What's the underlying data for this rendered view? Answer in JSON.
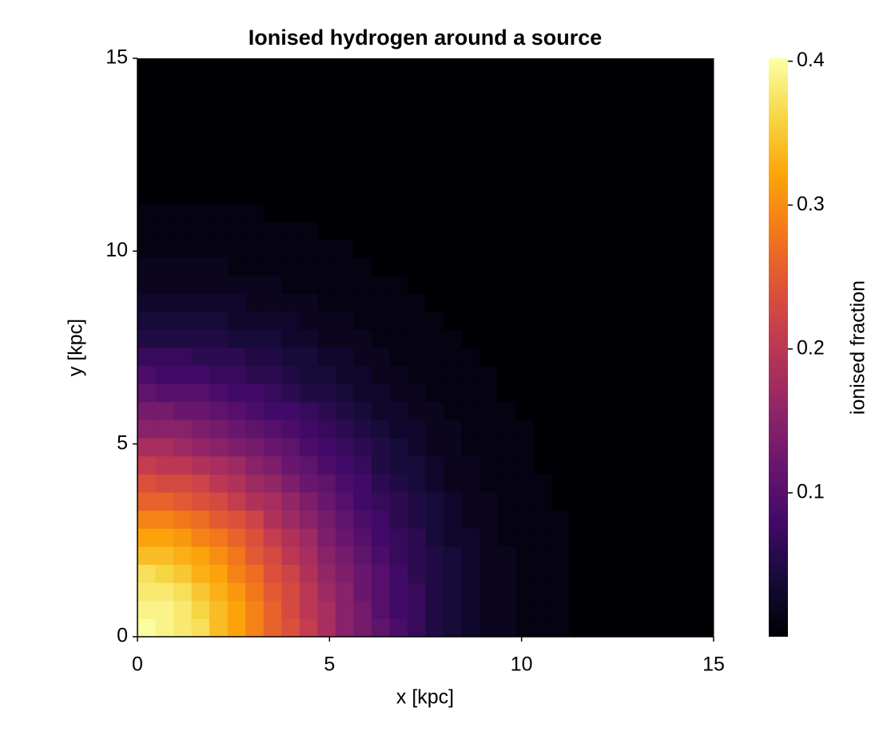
{
  "chart_data": {
    "type": "heatmap",
    "title": "Ionised hydrogen around a source",
    "xlabel": "x [kpc]",
    "ylabel": "y [kpc]",
    "colorbar_label": "ionised fraction",
    "xlim": [
      0,
      15
    ],
    "ylim": [
      0,
      15
    ],
    "xticks": [
      0,
      5,
      10,
      15
    ],
    "yticks": [
      0,
      5,
      10,
      15
    ],
    "colormap": "inferno",
    "clim": [
      0,
      0.402
    ],
    "cticks": [
      0.1,
      0.2,
      0.3,
      0.4
    ],
    "z": [
      [
        0.4,
        0.39,
        0.38,
        0.37,
        0.34,
        0.32,
        0.29,
        0.26,
        0.24,
        0.21,
        0.18,
        0.15,
        0.13,
        0.11,
        0.09,
        0.07,
        0.05,
        0.04,
        0.03,
        0.02,
        0.02,
        0.01,
        0.01,
        0.01,
        0,
        0,
        0,
        0,
        0,
        0,
        0,
        0
      ],
      [
        0.39,
        0.39,
        0.38,
        0.36,
        0.34,
        0.32,
        0.29,
        0.26,
        0.23,
        0.2,
        0.18,
        0.15,
        0.13,
        0.1,
        0.08,
        0.07,
        0.05,
        0.04,
        0.03,
        0.02,
        0.02,
        0.01,
        0.01,
        0.01,
        0,
        0,
        0,
        0,
        0,
        0,
        0,
        0
      ],
      [
        0.38,
        0.38,
        0.37,
        0.35,
        0.33,
        0.31,
        0.28,
        0.25,
        0.23,
        0.2,
        0.17,
        0.15,
        0.12,
        0.1,
        0.08,
        0.07,
        0.05,
        0.04,
        0.03,
        0.02,
        0.02,
        0.01,
        0.01,
        0.01,
        0,
        0,
        0,
        0,
        0,
        0,
        0,
        0
      ],
      [
        0.37,
        0.36,
        0.35,
        0.33,
        0.32,
        0.29,
        0.27,
        0.24,
        0.22,
        0.19,
        0.16,
        0.14,
        0.12,
        0.1,
        0.08,
        0.06,
        0.05,
        0.04,
        0.03,
        0.02,
        0.02,
        0.01,
        0.01,
        0.01,
        0,
        0,
        0,
        0,
        0,
        0,
        0,
        0
      ],
      [
        0.34,
        0.34,
        0.33,
        0.32,
        0.3,
        0.28,
        0.25,
        0.23,
        0.2,
        0.18,
        0.15,
        0.13,
        0.11,
        0.09,
        0.07,
        0.06,
        0.05,
        0.04,
        0.03,
        0.02,
        0.02,
        0.01,
        0.01,
        0.01,
        0,
        0,
        0,
        0,
        0,
        0,
        0,
        0
      ],
      [
        0.32,
        0.32,
        0.31,
        0.29,
        0.28,
        0.26,
        0.24,
        0.21,
        0.19,
        0.17,
        0.14,
        0.12,
        0.1,
        0.08,
        0.07,
        0.06,
        0.04,
        0.03,
        0.03,
        0.02,
        0.01,
        0.01,
        0.01,
        0.01,
        0,
        0,
        0,
        0,
        0,
        0,
        0,
        0
      ],
      [
        0.29,
        0.29,
        0.28,
        0.27,
        0.25,
        0.24,
        0.22,
        0.19,
        0.17,
        0.15,
        0.13,
        0.11,
        0.09,
        0.08,
        0.06,
        0.05,
        0.04,
        0.03,
        0.02,
        0.02,
        0.01,
        0.01,
        0.01,
        0.01,
        0,
        0,
        0,
        0,
        0,
        0,
        0,
        0
      ],
      [
        0.26,
        0.26,
        0.25,
        0.24,
        0.23,
        0.21,
        0.19,
        0.18,
        0.16,
        0.14,
        0.12,
        0.1,
        0.08,
        0.07,
        0.06,
        0.05,
        0.04,
        0.03,
        0.02,
        0.02,
        0.01,
        0.01,
        0.01,
        0,
        0,
        0,
        0,
        0,
        0,
        0,
        0,
        0
      ],
      [
        0.24,
        0.23,
        0.23,
        0.22,
        0.2,
        0.19,
        0.17,
        0.16,
        0.14,
        0.12,
        0.11,
        0.09,
        0.08,
        0.06,
        0.05,
        0.04,
        0.03,
        0.02,
        0.02,
        0.01,
        0.01,
        0.01,
        0.01,
        0,
        0,
        0,
        0,
        0,
        0,
        0,
        0,
        0
      ],
      [
        0.21,
        0.2,
        0.2,
        0.19,
        0.18,
        0.17,
        0.15,
        0.14,
        0.12,
        0.11,
        0.09,
        0.08,
        0.07,
        0.05,
        0.04,
        0.04,
        0.03,
        0.02,
        0.02,
        0.01,
        0.01,
        0.01,
        0,
        0,
        0,
        0,
        0,
        0,
        0,
        0,
        0,
        0
      ],
      [
        0.18,
        0.18,
        0.17,
        0.16,
        0.15,
        0.14,
        0.13,
        0.12,
        0.11,
        0.09,
        0.08,
        0.07,
        0.06,
        0.05,
        0.04,
        0.03,
        0.02,
        0.02,
        0.01,
        0.01,
        0.01,
        0.01,
        0,
        0,
        0,
        0,
        0,
        0,
        0,
        0,
        0,
        0
      ],
      [
        0.15,
        0.15,
        0.15,
        0.14,
        0.13,
        0.12,
        0.11,
        0.1,
        0.09,
        0.08,
        0.07,
        0.06,
        0.05,
        0.04,
        0.03,
        0.03,
        0.02,
        0.02,
        0.01,
        0.01,
        0.01,
        0.01,
        0,
        0,
        0,
        0,
        0,
        0,
        0,
        0,
        0,
        0
      ],
      [
        0.13,
        0.13,
        0.12,
        0.12,
        0.11,
        0.1,
        0.09,
        0.08,
        0.08,
        0.07,
        0.06,
        0.05,
        0.04,
        0.03,
        0.03,
        0.02,
        0.02,
        0.01,
        0.01,
        0.01,
        0.01,
        0,
        0,
        0,
        0,
        0,
        0,
        0,
        0,
        0,
        0,
        0
      ],
      [
        0.11,
        0.1,
        0.1,
        0.1,
        0.09,
        0.08,
        0.08,
        0.07,
        0.06,
        0.05,
        0.05,
        0.04,
        0.03,
        0.03,
        0.02,
        0.02,
        0.01,
        0.01,
        0.01,
        0.01,
        0,
        0,
        0,
        0,
        0,
        0,
        0,
        0,
        0,
        0,
        0,
        0
      ],
      [
        0.09,
        0.08,
        0.08,
        0.08,
        0.07,
        0.07,
        0.06,
        0.06,
        0.05,
        0.04,
        0.04,
        0.03,
        0.03,
        0.02,
        0.02,
        0.01,
        0.01,
        0.01,
        0.01,
        0.01,
        0,
        0,
        0,
        0,
        0,
        0,
        0,
        0,
        0,
        0,
        0,
        0
      ],
      [
        0.07,
        0.07,
        0.07,
        0.06,
        0.06,
        0.06,
        0.05,
        0.05,
        0.04,
        0.04,
        0.03,
        0.03,
        0.02,
        0.02,
        0.01,
        0.01,
        0.01,
        0.01,
        0.01,
        0,
        0,
        0,
        0,
        0,
        0,
        0,
        0,
        0,
        0,
        0,
        0,
        0
      ],
      [
        0.05,
        0.05,
        0.05,
        0.05,
        0.05,
        0.04,
        0.04,
        0.04,
        0.03,
        0.03,
        0.02,
        0.02,
        0.02,
        0.01,
        0.01,
        0.01,
        0.01,
        0.01,
        0,
        0,
        0,
        0,
        0,
        0,
        0,
        0,
        0,
        0,
        0,
        0,
        0,
        0
      ],
      [
        0.04,
        0.04,
        0.04,
        0.04,
        0.04,
        0.03,
        0.03,
        0.03,
        0.03,
        0.02,
        0.02,
        0.02,
        0.01,
        0.01,
        0.01,
        0.01,
        0.01,
        0,
        0,
        0,
        0,
        0,
        0,
        0,
        0,
        0,
        0,
        0,
        0,
        0,
        0,
        0
      ],
      [
        0.03,
        0.03,
        0.03,
        0.03,
        0.03,
        0.03,
        0.02,
        0.02,
        0.02,
        0.02,
        0.01,
        0.01,
        0.01,
        0.01,
        0.01,
        0.01,
        0,
        0,
        0,
        0,
        0,
        0,
        0,
        0,
        0,
        0,
        0,
        0,
        0,
        0,
        0,
        0
      ],
      [
        0.02,
        0.02,
        0.02,
        0.02,
        0.02,
        0.02,
        0.02,
        0.02,
        0.01,
        0.01,
        0.01,
        0.01,
        0.01,
        0.01,
        0.01,
        0,
        0,
        0,
        0,
        0,
        0,
        0,
        0,
        0,
        0,
        0,
        0,
        0,
        0,
        0,
        0,
        0
      ],
      [
        0.02,
        0.02,
        0.02,
        0.02,
        0.02,
        0.01,
        0.01,
        0.01,
        0.01,
        0.01,
        0.01,
        0.01,
        0.01,
        0,
        0,
        0,
        0,
        0,
        0,
        0,
        0,
        0,
        0,
        0,
        0,
        0,
        0,
        0,
        0,
        0,
        0,
        0
      ],
      [
        0.01,
        0.01,
        0.01,
        0.01,
        0.01,
        0.01,
        0.01,
        0.01,
        0.01,
        0.01,
        0.01,
        0.01,
        0,
        0,
        0,
        0,
        0,
        0,
        0,
        0,
        0,
        0,
        0,
        0,
        0,
        0,
        0,
        0,
        0,
        0,
        0,
        0
      ],
      [
        0.01,
        0.01,
        0.01,
        0.01,
        0.01,
        0.01,
        0.01,
        0.01,
        0.01,
        0.01,
        0,
        0,
        0,
        0,
        0,
        0,
        0,
        0,
        0,
        0,
        0,
        0,
        0,
        0,
        0,
        0,
        0,
        0,
        0,
        0,
        0,
        0
      ],
      [
        0.01,
        0.01,
        0.01,
        0.01,
        0.01,
        0.01,
        0.01,
        0,
        0,
        0,
        0,
        0,
        0,
        0,
        0,
        0,
        0,
        0,
        0,
        0,
        0,
        0,
        0,
        0,
        0,
        0,
        0,
        0,
        0,
        0,
        0,
        0
      ],
      [
        0,
        0,
        0,
        0,
        0,
        0,
        0,
        0,
        0,
        0,
        0,
        0,
        0,
        0,
        0,
        0,
        0,
        0,
        0,
        0,
        0,
        0,
        0,
        0,
        0,
        0,
        0,
        0,
        0,
        0,
        0,
        0
      ],
      [
        0,
        0,
        0,
        0,
        0,
        0,
        0,
        0,
        0,
        0,
        0,
        0,
        0,
        0,
        0,
        0,
        0,
        0,
        0,
        0,
        0,
        0,
        0,
        0,
        0,
        0,
        0,
        0,
        0,
        0,
        0,
        0
      ],
      [
        0,
        0,
        0,
        0,
        0,
        0,
        0,
        0,
        0,
        0,
        0,
        0,
        0,
        0,
        0,
        0,
        0,
        0,
        0,
        0,
        0,
        0,
        0,
        0,
        0,
        0,
        0,
        0,
        0,
        0,
        0,
        0
      ],
      [
        0,
        0,
        0,
        0,
        0,
        0,
        0,
        0,
        0,
        0,
        0,
        0,
        0,
        0,
        0,
        0,
        0,
        0,
        0,
        0,
        0,
        0,
        0,
        0,
        0,
        0,
        0,
        0,
        0,
        0,
        0,
        0
      ],
      [
        0,
        0,
        0,
        0,
        0,
        0,
        0,
        0,
        0,
        0,
        0,
        0,
        0,
        0,
        0,
        0,
        0,
        0,
        0,
        0,
        0,
        0,
        0,
        0,
        0,
        0,
        0,
        0,
        0,
        0,
        0,
        0
      ],
      [
        0,
        0,
        0,
        0,
        0,
        0,
        0,
        0,
        0,
        0,
        0,
        0,
        0,
        0,
        0,
        0,
        0,
        0,
        0,
        0,
        0,
        0,
        0,
        0,
        0,
        0,
        0,
        0,
        0,
        0,
        0,
        0
      ],
      [
        0,
        0,
        0,
        0,
        0,
        0,
        0,
        0,
        0,
        0,
        0,
        0,
        0,
        0,
        0,
        0,
        0,
        0,
        0,
        0,
        0,
        0,
        0,
        0,
        0,
        0,
        0,
        0,
        0,
        0,
        0,
        0
      ],
      [
        0,
        0,
        0,
        0,
        0,
        0,
        0,
        0,
        0,
        0,
        0,
        0,
        0,
        0,
        0,
        0,
        0,
        0,
        0,
        0,
        0,
        0,
        0,
        0,
        0,
        0,
        0,
        0,
        0,
        0,
        0,
        0
      ]
    ]
  }
}
